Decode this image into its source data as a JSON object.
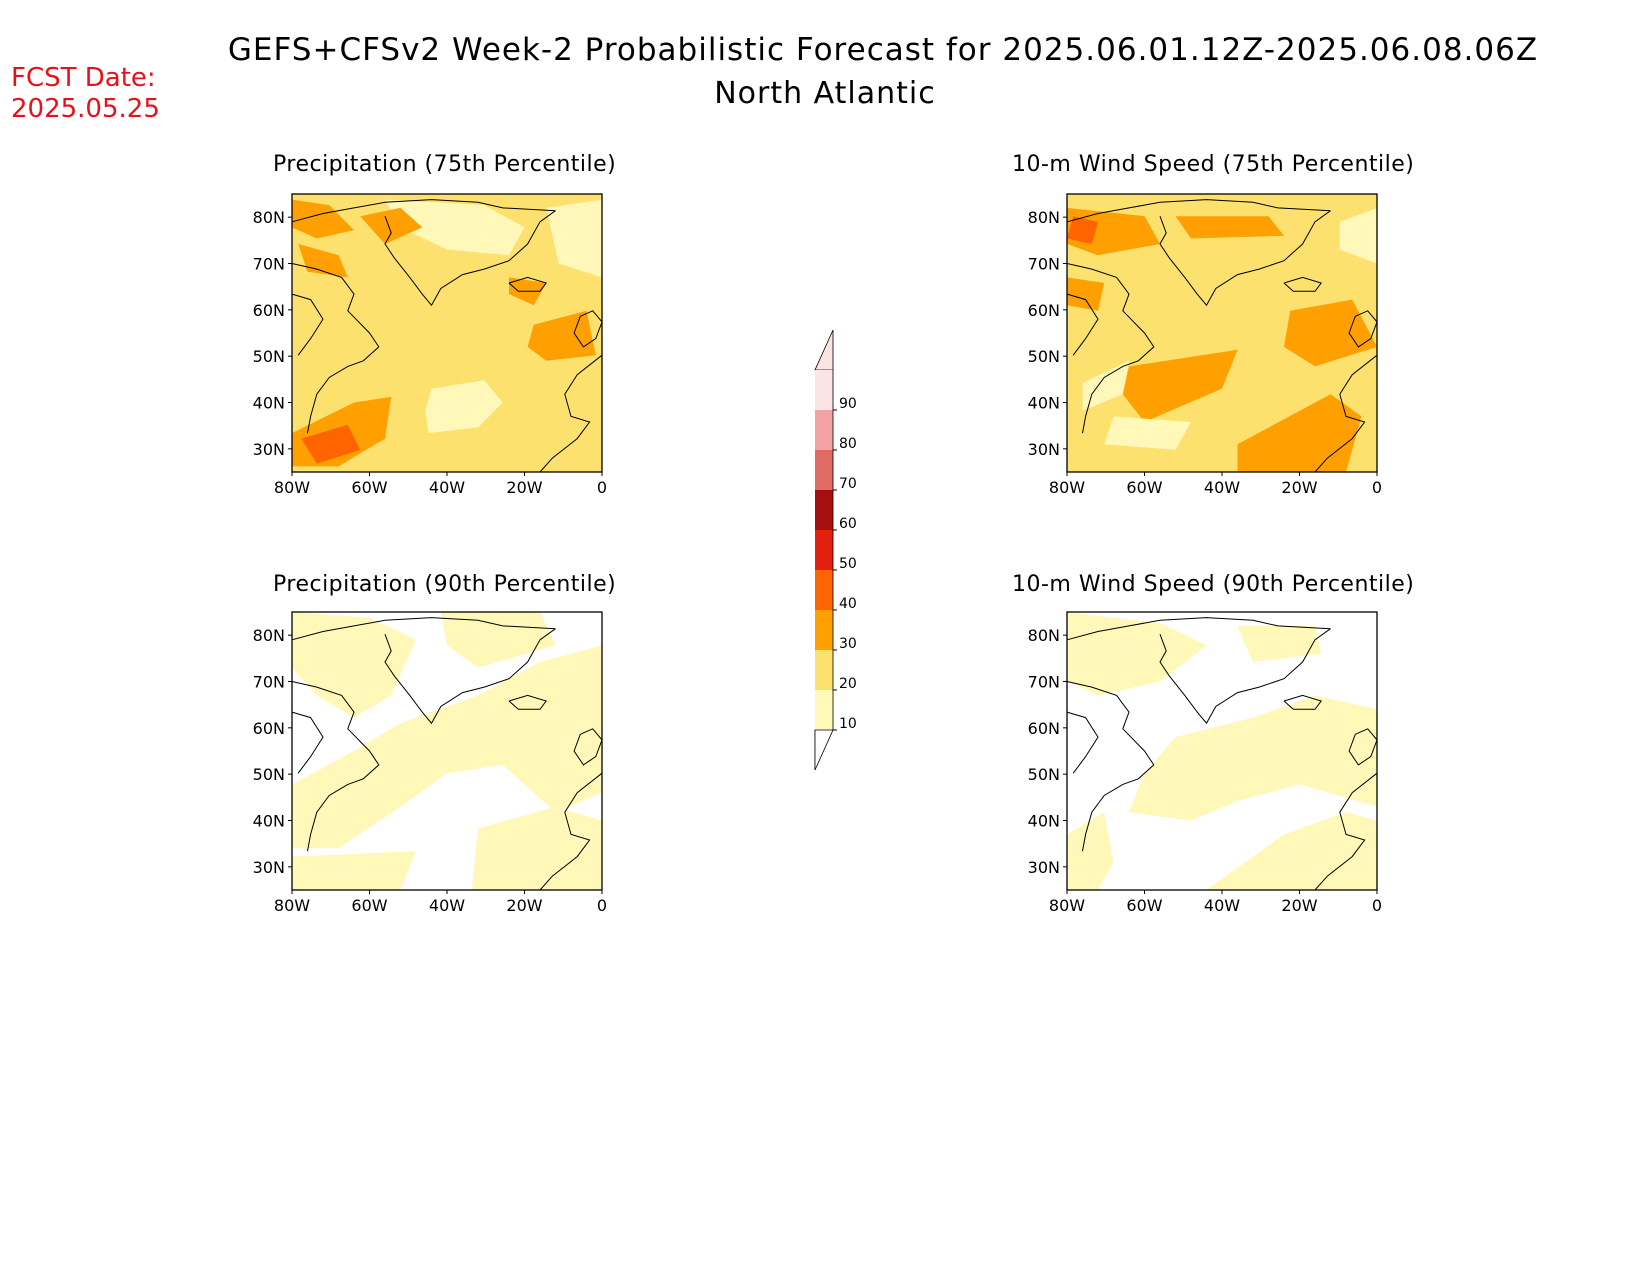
{
  "header": {
    "title": "GEFS+CFSv2 Week-2 Probabilistic Forecast for 2025.06.01.12Z-2025.06.08.06Z",
    "subtitle": "North Atlantic",
    "fcst_label": "FCST Date:",
    "fcst_date": "2025.05.25"
  },
  "panels": [
    {
      "id": "precip75",
      "title": "Precipitation (75th Percentile)",
      "base_fill": "#fde16e"
    },
    {
      "id": "wind75",
      "title": "10-m Wind Speed (75th Percentile)",
      "base_fill": "#fde16e"
    },
    {
      "id": "precip90",
      "title": "Precipitation (90th Percentile)",
      "base_fill": "#ffffff"
    },
    {
      "id": "wind90",
      "title": "10-m Wind Speed (90th Percentile)",
      "base_fill": "#ffffff"
    }
  ],
  "axes": {
    "x_ticks": [
      "80W",
      "60W",
      "40W",
      "20W",
      "0"
    ],
    "y_ticks": [
      "80N",
      "70N",
      "60N",
      "50N",
      "40N",
      "30N"
    ]
  },
  "colorbar": {
    "labels": [
      "90",
      "80",
      "70",
      "60",
      "50",
      "40",
      "30",
      "20",
      "10"
    ],
    "colors": [
      "#fce4e4",
      "#f4a3a3",
      "#e06a64",
      "#a50f0f",
      "#e3200e",
      "#ff6400",
      "#ffa000",
      "#fde16e",
      "#fff8b8"
    ]
  },
  "fill_colors": {
    "c10": "#fff8b8",
    "c20": "#fde16e",
    "c30": "#ffa000",
    "c40": "#ff6400",
    "c50": "#e3200e"
  }
}
